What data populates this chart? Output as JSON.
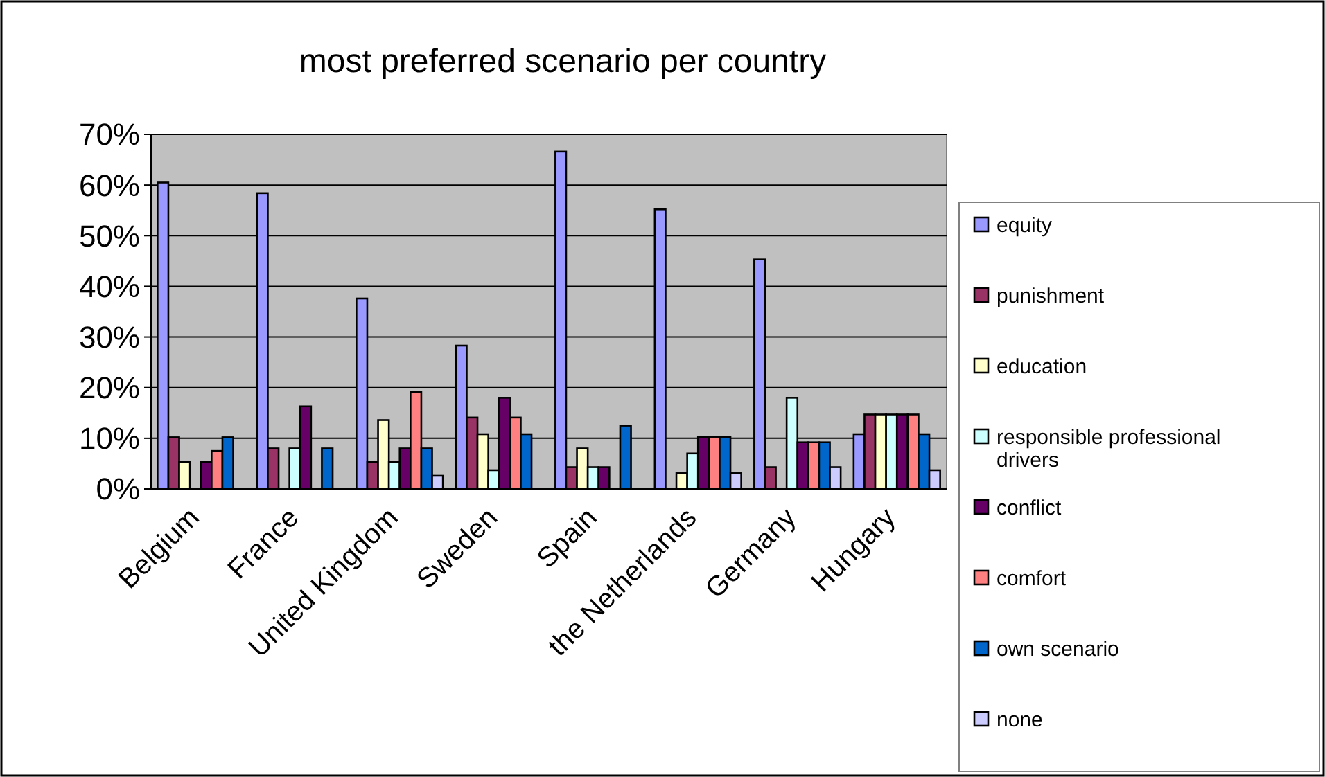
{
  "chart_data": {
    "type": "bar",
    "title": "most preferred scenario per country",
    "categories": [
      "Belgium",
      "France",
      "United Kingdom",
      "Sweden",
      "Spain",
      "the Netherlands",
      "Germany",
      "Hungary"
    ],
    "series": [
      {
        "name": "equity",
        "color": "#9999ff",
        "values": [
          60.5,
          58.4,
          37.6,
          28.3,
          66.6,
          55.2,
          45.3,
          10.8
        ]
      },
      {
        "name": "punishment",
        "color": "#993366",
        "values": [
          10.2,
          8.0,
          5.3,
          14.1,
          4.3,
          0,
          4.3,
          14.7
        ]
      },
      {
        "name": "education",
        "color": "#ffffcc",
        "values": [
          5.3,
          0,
          13.6,
          10.8,
          8.0,
          3.1,
          0,
          14.7
        ]
      },
      {
        "name": "responsible professional drivers",
        "color": "#ccffff",
        "values": [
          0,
          8.0,
          5.3,
          3.7,
          4.3,
          7.0,
          18.0,
          14.7
        ]
      },
      {
        "name": "conflict",
        "color": "#660066",
        "values": [
          5.3,
          16.3,
          8.0,
          18.0,
          4.3,
          10.3,
          9.2,
          14.7
        ]
      },
      {
        "name": "comfort",
        "color": "#ff8080",
        "values": [
          7.5,
          0,
          19.1,
          14.1,
          0,
          10.3,
          9.2,
          14.7
        ]
      },
      {
        "name": "own scenario",
        "color": "#0066cc",
        "values": [
          10.2,
          8.0,
          8.0,
          10.8,
          12.5,
          10.3,
          9.2,
          10.8
        ]
      },
      {
        "name": "none",
        "color": "#ccccff",
        "values": [
          0,
          0,
          2.6,
          0,
          0,
          3.1,
          4.3,
          3.7
        ]
      }
    ],
    "ylim": [
      0,
      70
    ],
    "yticks": [
      {
        "value": 0,
        "label": "0%"
      },
      {
        "value": 10,
        "label": "10%"
      },
      {
        "value": 20,
        "label": "20%"
      },
      {
        "value": 30,
        "label": "30%"
      },
      {
        "value": 40,
        "label": "40%"
      },
      {
        "value": 50,
        "label": "50%"
      },
      {
        "value": 60,
        "label": "60%"
      },
      {
        "value": 70,
        "label": "70%"
      }
    ],
    "grid": "y",
    "legend": "right"
  }
}
